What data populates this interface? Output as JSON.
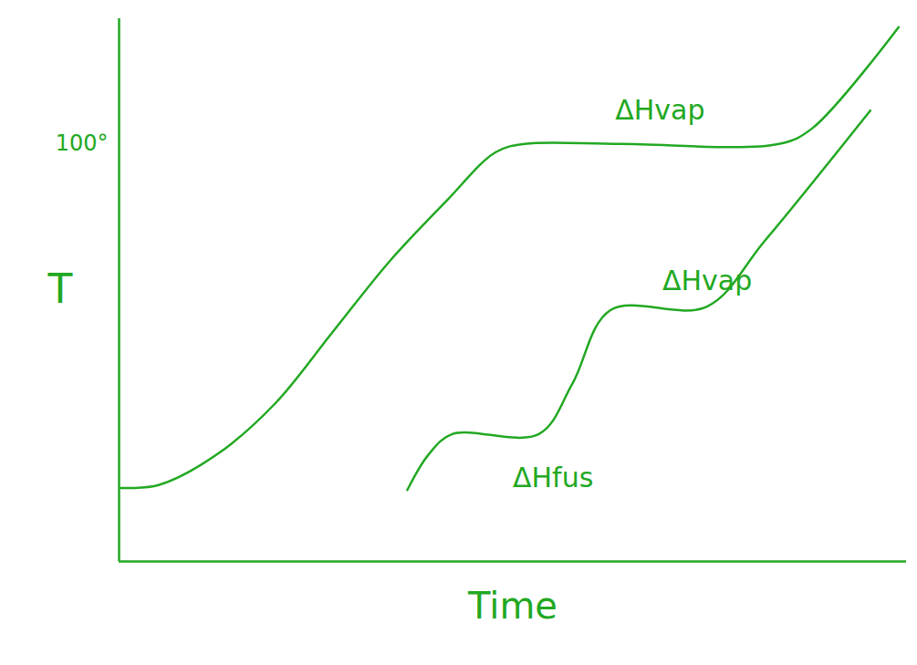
{
  "chart_data": {
    "type": "line",
    "xlabel": "Time",
    "ylabel": "T",
    "xlim": [
      0,
      10
    ],
    "ylim": [
      0,
      130
    ],
    "yticks": [
      {
        "value": 100,
        "label": "100°"
      }
    ],
    "tick_labels": "y",
    "color": "#22a822",
    "series": [
      {
        "color": "#22a822",
        "x": [
          0.02,
          0.5,
          1.24,
          1.98,
          2.71,
          3.44,
          4.17,
          4.78,
          5.15,
          6.37,
          8.38,
          8.8,
          9.9
        ],
        "values": [
          17.6,
          18.3,
          25.6,
          37.8,
          54.9,
          72,
          86.6,
          98,
          100,
          100,
          100,
          103.7,
          128
        ]
      },
      {
        "color": "#22a822",
        "x": [
          3.66,
          3.93,
          4.23,
          5.33,
          5.76,
          6.24,
          7.46,
          8.2,
          9.54
        ],
        "values": [
          17.1,
          25.6,
          30.5,
          30.5,
          42.7,
          60.2,
          61,
          76.8,
          108
        ]
      }
    ],
    "annotations": [
      {
        "text": "ΔHvap",
        "x": 6.3,
        "y": 108
      },
      {
        "text": "ΔHvap",
        "x": 6.9,
        "y": 67
      },
      {
        "text": "ΔHfus",
        "x": 5.0,
        "y": 20
      }
    ]
  }
}
